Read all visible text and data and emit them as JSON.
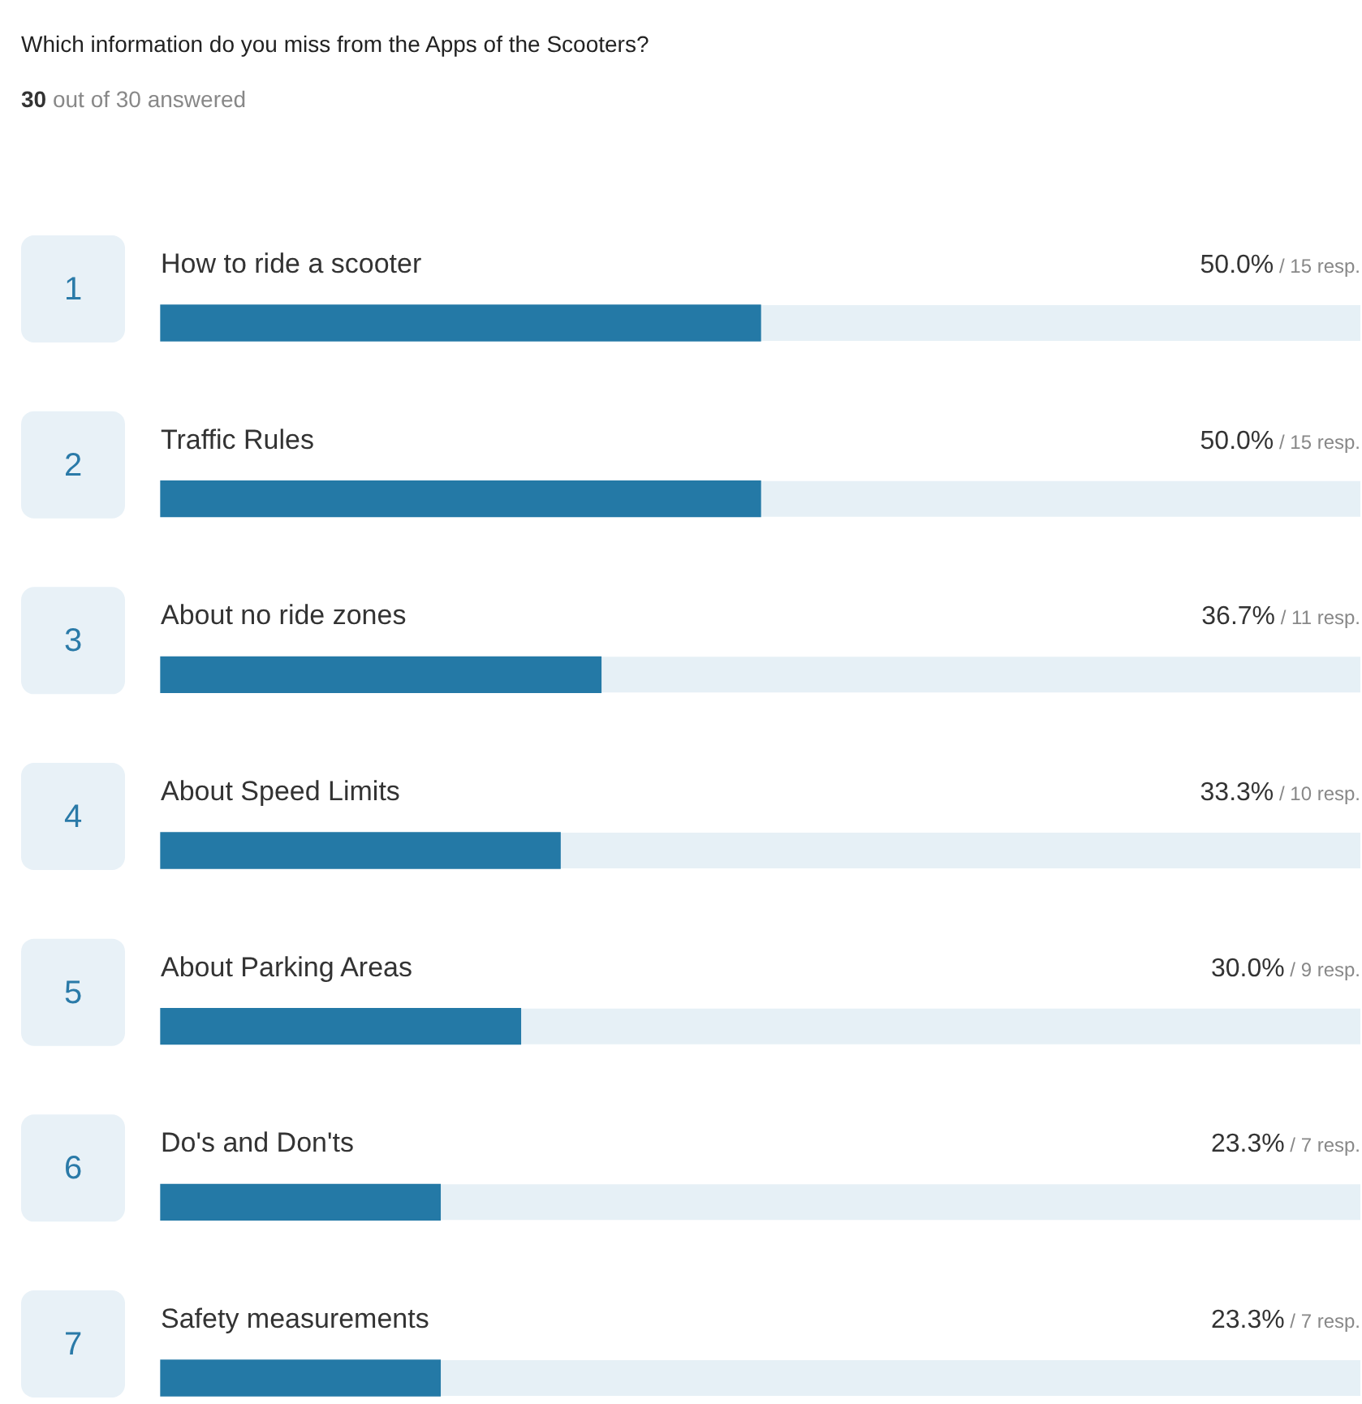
{
  "chart_data": {
    "type": "bar",
    "orientation": "horizontal",
    "title": "Which information do you miss from the Apps of the Scooters?",
    "subtitle": "30 out of 30 answered",
    "categories": [
      "How to ride a scooter",
      "Traffic Rules",
      "About no ride zones",
      "About Speed Limits",
      "About Parking Areas",
      "Do's and Don'ts",
      "Safety measurements"
    ],
    "values": [
      50.0,
      50.0,
      36.7,
      33.3,
      30.0,
      23.3,
      23.3
    ],
    "value_labels": [
      "50.0% / 15 resp.",
      "50.0% / 15 resp.",
      "36.7% / 11 resp.",
      "33.3% / 10 resp.",
      "30.0% / 9 resp.",
      "23.3% / 7 resp.",
      "23.3% / 7 resp."
    ],
    "color": "#2479a6",
    "xlim": [
      0,
      100
    ],
    "tick_labels": false,
    "annotations": [
      "1",
      "2",
      "3",
      "4",
      "5",
      "6",
      "7"
    ]
  }
}
